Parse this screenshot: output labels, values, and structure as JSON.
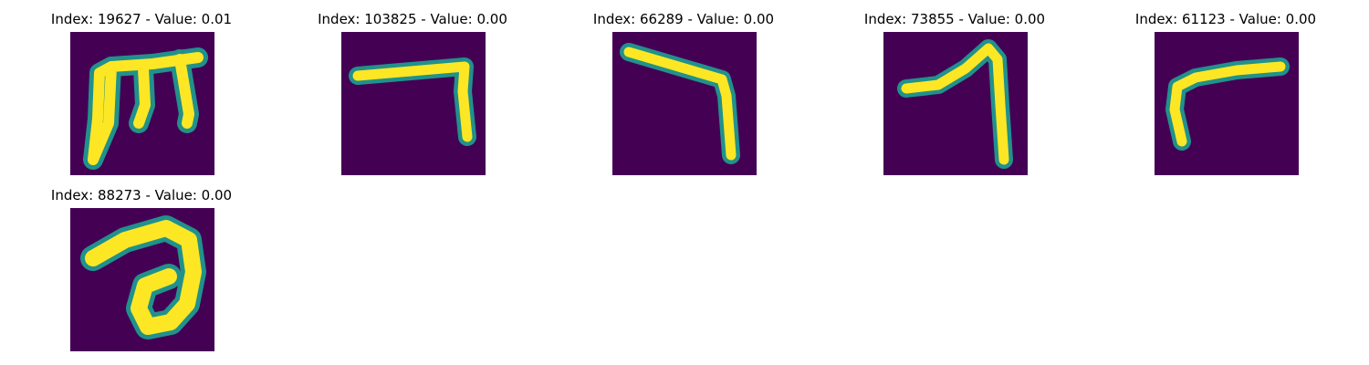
{
  "colors": {
    "background": "#440154",
    "stroke_mid": "#21918c",
    "stroke_core": "#fde725"
  },
  "panels": [
    {
      "title": "Index: 19627 - Value: 0.01"
    },
    {
      "title": "Index: 103825 - Value: 0.00"
    },
    {
      "title": "Index: 66289 - Value: 0.00"
    },
    {
      "title": "Index: 73855 - Value: 0.00"
    },
    {
      "title": "Index: 61123 - Value: 0.00"
    },
    {
      "title": "Index: 88273 - Value: 0.00"
    }
  ]
}
